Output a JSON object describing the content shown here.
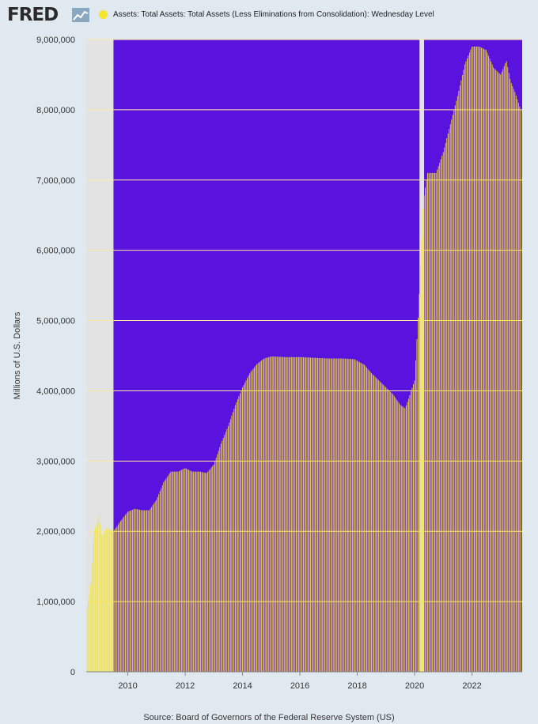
{
  "header": {
    "logo_text": "FRED",
    "logo_icon": "line-chart-icon",
    "legend_label": "Assets: Total Assets: Total Assets (Less Eliminations from Consolidation): Wednesday Level",
    "legend_color": "#f5e52c"
  },
  "footer": {
    "source": "Source: Board of Governors of the Federal Reserve System (US)"
  },
  "colors": {
    "plot_bg": "#5a13de",
    "bar": "#f5e52c",
    "recession_shade": "#e3e3e3",
    "page_bg": "#e1e9f0"
  },
  "chart_data": {
    "type": "bar",
    "title": "",
    "xlabel": "",
    "ylabel": "Millions of U.S. Dollars",
    "ylim": [
      0,
      9000000
    ],
    "xlim": [
      2008.55,
      2023.75
    ],
    "y_ticks": [
      0,
      1000000,
      2000000,
      3000000,
      4000000,
      5000000,
      6000000,
      7000000,
      8000000,
      9000000
    ],
    "y_tick_labels": [
      "0",
      "1,000,000",
      "2,000,000",
      "3,000,000",
      "4,000,000",
      "5,000,000",
      "6,000,000",
      "7,000,000",
      "8,000,000",
      "9,000,000"
    ],
    "x_ticks": [
      2010,
      2012,
      2014,
      2016,
      2018,
      2020,
      2022
    ],
    "x_tick_labels": [
      "2010",
      "2012",
      "2014",
      "2016",
      "2018",
      "2020",
      "2022"
    ],
    "grid": "horizontal",
    "recessions": [
      [
        2008.55,
        2009.5
      ],
      [
        2020.17,
        2020.33
      ]
    ],
    "series": [
      {
        "values_points": [
          [
            2008.58,
            900000
          ],
          [
            2008.7,
            1200000
          ],
          [
            2008.8,
            1950000
          ],
          [
            2008.9,
            2100000
          ],
          [
            2009.0,
            2230000
          ],
          [
            2009.1,
            1900000
          ],
          [
            2009.25,
            2050000
          ],
          [
            2009.5,
            2000000
          ],
          [
            2009.75,
            2150000
          ],
          [
            2010.0,
            2280000
          ],
          [
            2010.25,
            2320000
          ],
          [
            2010.5,
            2300000
          ],
          [
            2010.75,
            2300000
          ],
          [
            2011.0,
            2450000
          ],
          [
            2011.25,
            2700000
          ],
          [
            2011.5,
            2850000
          ],
          [
            2011.75,
            2850000
          ],
          [
            2012.0,
            2900000
          ],
          [
            2012.25,
            2850000
          ],
          [
            2012.5,
            2850000
          ],
          [
            2012.75,
            2830000
          ],
          [
            2013.0,
            2950000
          ],
          [
            2013.25,
            3250000
          ],
          [
            2013.5,
            3500000
          ],
          [
            2013.75,
            3800000
          ],
          [
            2014.0,
            4050000
          ],
          [
            2014.25,
            4250000
          ],
          [
            2014.5,
            4380000
          ],
          [
            2014.75,
            4460000
          ],
          [
            2015.0,
            4490000
          ],
          [
            2015.5,
            4480000
          ],
          [
            2016.0,
            4480000
          ],
          [
            2016.5,
            4470000
          ],
          [
            2017.0,
            4460000
          ],
          [
            2017.5,
            4460000
          ],
          [
            2017.9,
            4450000
          ],
          [
            2018.25,
            4370000
          ],
          [
            2018.5,
            4250000
          ],
          [
            2018.75,
            4150000
          ],
          [
            2019.0,
            4050000
          ],
          [
            2019.25,
            3950000
          ],
          [
            2019.5,
            3800000
          ],
          [
            2019.67,
            3750000
          ],
          [
            2019.8,
            3900000
          ],
          [
            2020.0,
            4150000
          ],
          [
            2020.15,
            5250000
          ],
          [
            2020.3,
            6700000
          ],
          [
            2020.45,
            7100000
          ],
          [
            2020.75,
            7100000
          ],
          [
            2021.0,
            7400000
          ],
          [
            2021.25,
            7800000
          ],
          [
            2021.5,
            8200000
          ],
          [
            2021.75,
            8650000
          ],
          [
            2022.0,
            8900000
          ],
          [
            2022.25,
            8900000
          ],
          [
            2022.5,
            8850000
          ],
          [
            2022.75,
            8600000
          ],
          [
            2023.0,
            8500000
          ],
          [
            2023.2,
            8700000
          ],
          [
            2023.35,
            8400000
          ],
          [
            2023.5,
            8250000
          ],
          [
            2023.7,
            8000000
          ]
        ]
      }
    ]
  }
}
